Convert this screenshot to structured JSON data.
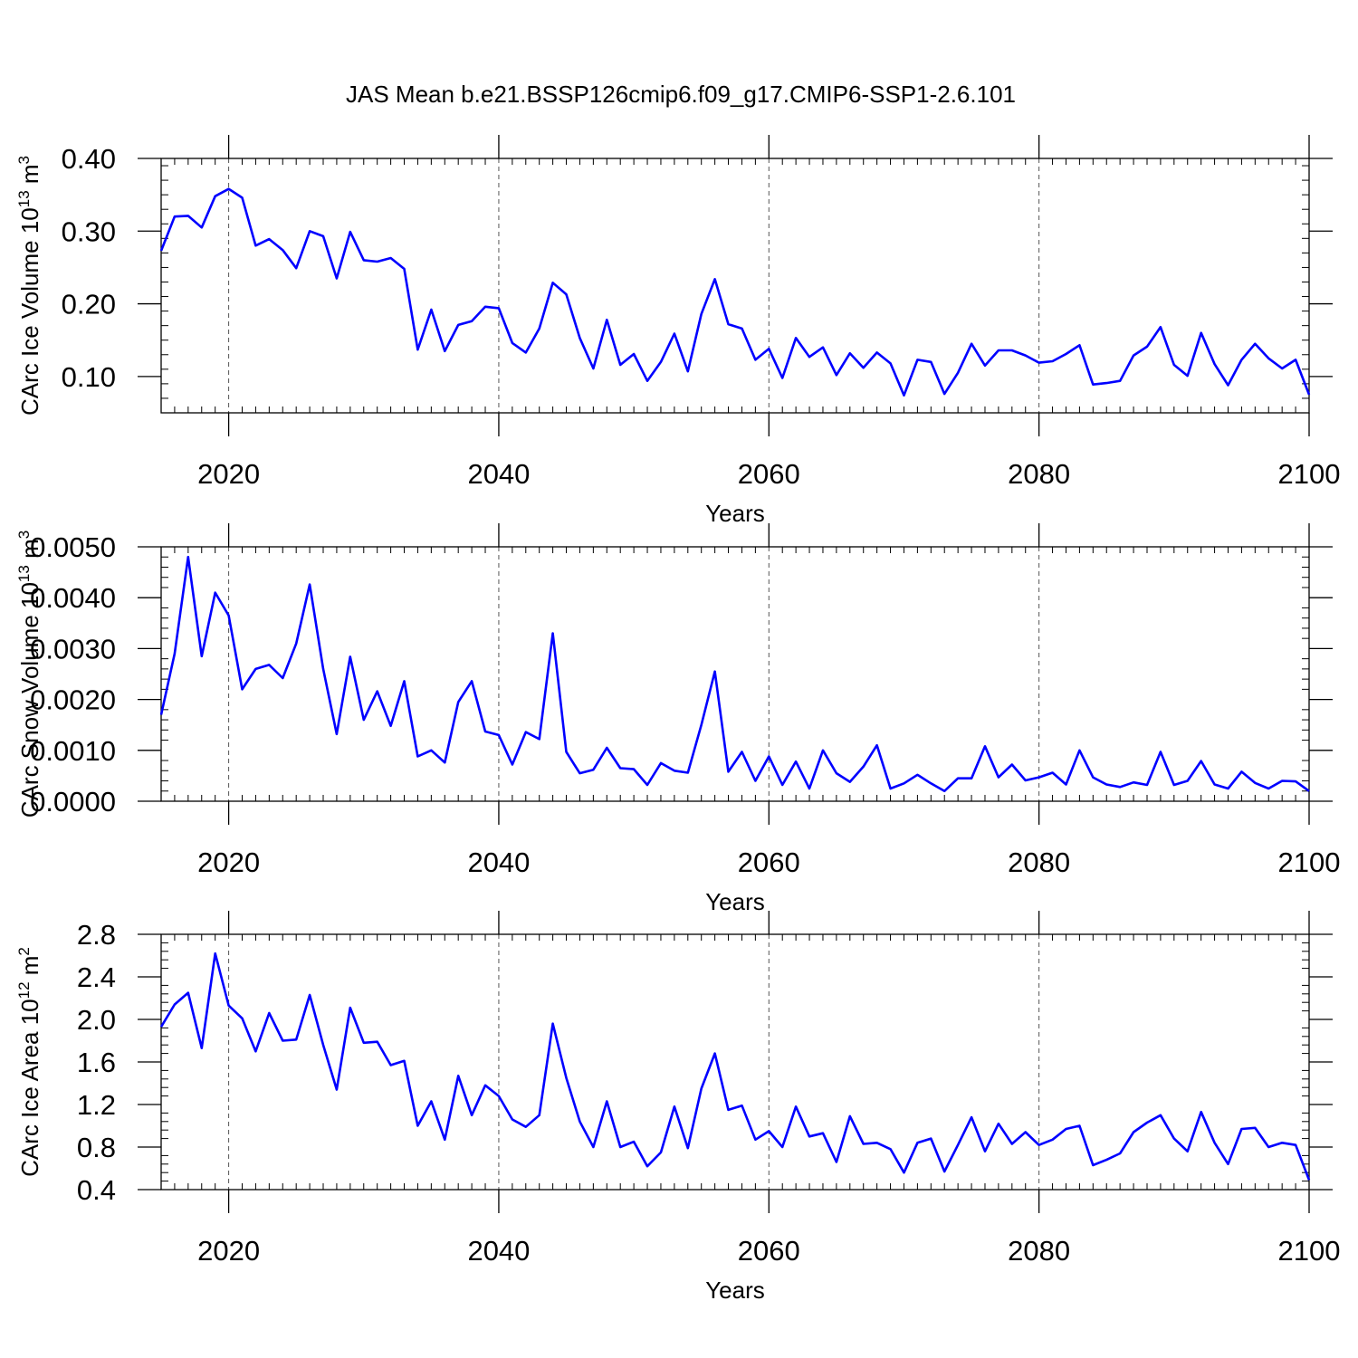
{
  "title": "JAS Mean b.e21.BSSP126cmip6.f09_g17.CMIP6-SSP1-2.6.101",
  "chart_data": [
    {
      "type": "line",
      "ylabel_main": "CArc Ice Volume 10",
      "ylabel_exp": "13",
      "ylabel_unit": " m",
      "ylabel_unit_exp": "3",
      "xlabel": "Years",
      "xlim": [
        2015,
        2100
      ],
      "ylim": [
        0.05,
        0.4
      ],
      "yticks": [
        0.1,
        0.2,
        0.3,
        0.4
      ],
      "ytick_labels": [
        "0.10",
        "0.20",
        "0.30",
        "0.40"
      ],
      "xticks": [
        2020,
        2040,
        2060,
        2080,
        2100
      ],
      "xtick_labels": [
        "2020",
        "2040",
        "2060",
        "2080",
        "2100"
      ],
      "grid": "dashed vertical at major x ticks",
      "line_color": "#0000ff",
      "x_start": 2015,
      "values": [
        0.273,
        0.32,
        0.321,
        0.305,
        0.348,
        0.358,
        0.346,
        0.28,
        0.289,
        0.274,
        0.249,
        0.3,
        0.293,
        0.235,
        0.299,
        0.26,
        0.258,
        0.263,
        0.248,
        0.137,
        0.192,
        0.135,
        0.171,
        0.176,
        0.196,
        0.194,
        0.146,
        0.133,
        0.166,
        0.229,
        0.213,
        0.153,
        0.111,
        0.178,
        0.116,
        0.131,
        0.094,
        0.12,
        0.159,
        0.107,
        0.186,
        0.234,
        0.172,
        0.166,
        0.123,
        0.138,
        0.098,
        0.153,
        0.127,
        0.14,
        0.102,
        0.132,
        0.112,
        0.133,
        0.118,
        0.074,
        0.123,
        0.12,
        0.076,
        0.105,
        0.145,
        0.115,
        0.136,
        0.136,
        0.129,
        0.119,
        0.121,
        0.131,
        0.143,
        0.089,
        0.091,
        0.094,
        0.129,
        0.141,
        0.168,
        0.116,
        0.101,
        0.16,
        0.117,
        0.088,
        0.123,
        0.145,
        0.125,
        0.111,
        0.123,
        0.075
      ]
    },
    {
      "type": "line",
      "ylabel_main": "CArc Snow Volume 10",
      "ylabel_exp": "13",
      "ylabel_unit": " m",
      "ylabel_unit_exp": "3",
      "xlabel": "Years",
      "xlim": [
        2015,
        2100
      ],
      "ylim": [
        0.0,
        0.005
      ],
      "yticks": [
        0.0,
        0.001,
        0.002,
        0.003,
        0.004,
        0.005
      ],
      "ytick_labels": [
        "0.0000",
        "0.0010",
        "0.0020",
        "0.0030",
        "0.0040",
        "0.0050"
      ],
      "xticks": [
        2020,
        2040,
        2060,
        2080,
        2100
      ],
      "xtick_labels": [
        "2020",
        "2040",
        "2060",
        "2080",
        "2100"
      ],
      "grid": "dashed vertical at major x ticks",
      "line_color": "#0000ff",
      "x_start": 2015,
      "values": [
        0.0017,
        0.0029,
        0.0048,
        0.00285,
        0.0041,
        0.00365,
        0.0022,
        0.0026,
        0.00268,
        0.00242,
        0.0031,
        0.00426,
        0.0026,
        0.00132,
        0.00284,
        0.0016,
        0.00216,
        0.00148,
        0.00236,
        0.00088,
        0.001,
        0.00076,
        0.00195,
        0.00236,
        0.00137,
        0.0013,
        0.00072,
        0.00136,
        0.00122,
        0.0033,
        0.00097,
        0.00055,
        0.00062,
        0.00105,
        0.00065,
        0.00063,
        0.00032,
        0.00075,
        0.0006,
        0.00056,
        0.0015,
        0.00255,
        0.00058,
        0.00097,
        0.0004,
        0.00088,
        0.00032,
        0.00078,
        0.00025,
        0.001,
        0.00055,
        0.00038,
        0.00068,
        0.0011,
        0.00025,
        0.00035,
        0.00052,
        0.00035,
        0.0002,
        0.00045,
        0.00045,
        0.00108,
        0.00047,
        0.00072,
        0.00041,
        0.00047,
        0.00056,
        0.00033,
        0.001,
        0.00047,
        0.00033,
        0.00028,
        0.00037,
        0.00032,
        0.00097,
        0.00032,
        0.0004,
        0.00079,
        0.00033,
        0.00025,
        0.00058,
        0.00036,
        0.00025,
        0.0004,
        0.00039,
        0.0002
      ]
    },
    {
      "type": "line",
      "ylabel_main": "CArc Ice Area 10",
      "ylabel_exp": "12",
      "ylabel_unit": " m",
      "ylabel_unit_exp": "2",
      "xlabel": "Years",
      "xlim": [
        2015,
        2100
      ],
      "ylim": [
        0.4,
        2.8
      ],
      "yticks": [
        0.4,
        0.8,
        1.2,
        1.6,
        2.0,
        2.4,
        2.8
      ],
      "ytick_labels": [
        "0.4",
        "0.8",
        "1.2",
        "1.6",
        "2.0",
        "2.4",
        "2.8"
      ],
      "xticks": [
        2020,
        2040,
        2060,
        2080,
        2100
      ],
      "xtick_labels": [
        "2020",
        "2040",
        "2060",
        "2080",
        "2100"
      ],
      "grid": "dashed vertical at major x ticks",
      "line_color": "#0000ff",
      "x_start": 2015,
      "values": [
        1.93,
        2.14,
        2.25,
        1.73,
        2.62,
        2.13,
        2.01,
        1.7,
        2.06,
        1.8,
        1.81,
        2.23,
        1.76,
        1.34,
        2.11,
        1.78,
        1.79,
        1.57,
        1.61,
        1.0,
        1.23,
        0.87,
        1.47,
        1.1,
        1.38,
        1.28,
        1.06,
        0.99,
        1.1,
        1.96,
        1.45,
        1.04,
        0.8,
        1.23,
        0.8,
        0.85,
        0.62,
        0.75,
        1.18,
        0.79,
        1.35,
        1.68,
        1.15,
        1.19,
        0.87,
        0.95,
        0.8,
        1.18,
        0.9,
        0.93,
        0.66,
        1.09,
        0.83,
        0.84,
        0.78,
        0.56,
        0.84,
        0.88,
        0.57,
        0.82,
        1.08,
        0.76,
        1.02,
        0.83,
        0.94,
        0.82,
        0.87,
        0.97,
        1.0,
        0.63,
        0.68,
        0.74,
        0.94,
        1.03,
        1.1,
        0.88,
        0.76,
        1.13,
        0.84,
        0.64,
        0.97,
        0.98,
        0.8,
        0.84,
        0.82,
        0.49
      ]
    }
  ]
}
